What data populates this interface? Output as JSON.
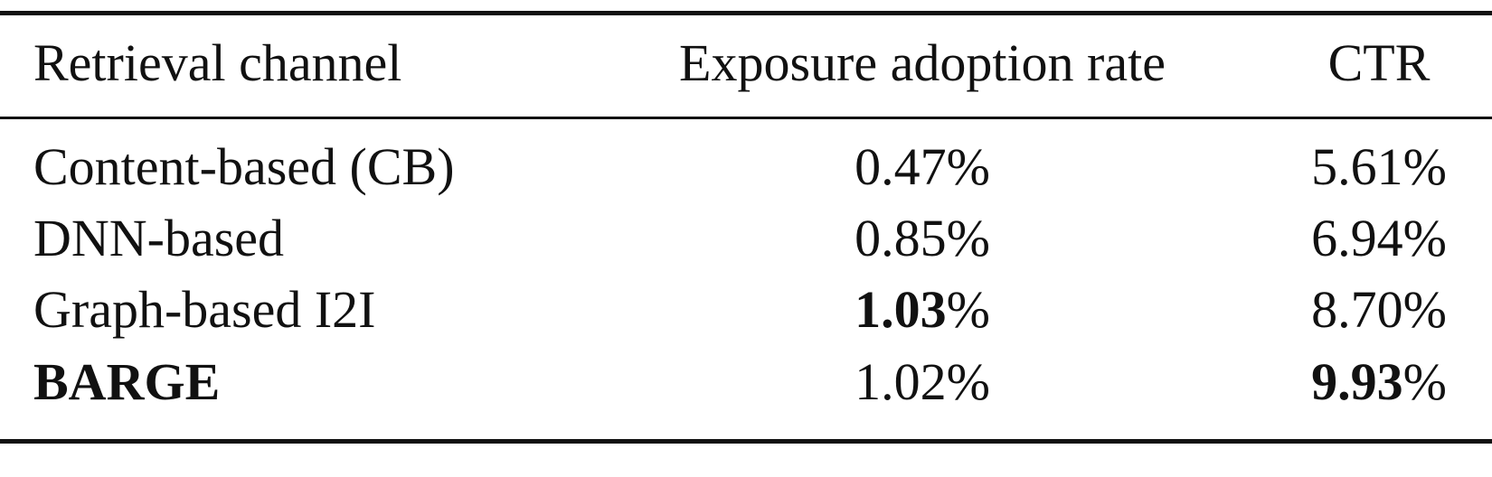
{
  "table": {
    "header": [
      "Retrieval channel",
      "Exposure adoption rate",
      "CTR"
    ],
    "rows": [
      [
        {
          "text": "Content-based (CB)",
          "bold": false
        },
        {
          "text": "0.47%",
          "bold": false
        },
        {
          "text": "5.61%",
          "bold": false
        }
      ],
      [
        {
          "text": "DNN-based",
          "bold": false
        },
        {
          "text": "0.85%",
          "bold": false
        },
        {
          "text": "6.94%",
          "bold": false
        }
      ],
      [
        {
          "text": "Graph-based I2I",
          "bold": false
        },
        {
          "text": "1.03%",
          "bold": true
        },
        {
          "text": "8.70%",
          "bold": false
        }
      ],
      [
        {
          "text": "BARGE",
          "bold": true
        },
        {
          "text": "1.02%",
          "bold": false
        },
        {
          "text": "9.93%",
          "bold": true
        }
      ]
    ]
  }
}
